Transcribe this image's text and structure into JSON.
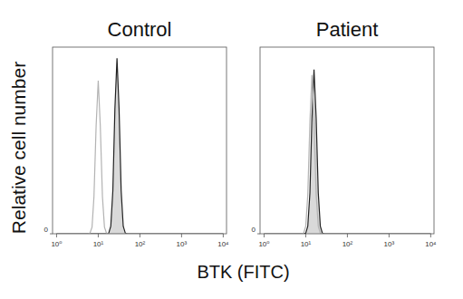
{
  "chart_data": [
    {
      "type": "line",
      "title": "Control",
      "log": "x",
      "x": [
        1,
        5.0,
        5.6,
        6.3,
        7.1,
        7.9,
        8.9,
        10,
        11.2,
        12.6,
        14.1,
        15.8,
        17.8,
        20,
        22.4,
        25.1,
        28.2,
        31.6,
        35.5,
        39.8,
        44.7,
        50.1,
        56.2,
        63.1,
        10000
      ],
      "series": [
        {
          "type": "line",
          "color": "#b3b3b3",
          "values": [
            0,
            0,
            0,
            0.3,
            3.6,
            20,
            58,
            82,
            58,
            20,
            3.6,
            0.3,
            0,
            0,
            0,
            0,
            0,
            0,
            0,
            0,
            0,
            0,
            0,
            0,
            0
          ]
        },
        {
          "type": "area",
          "color": "#d9d9d9",
          "values": [
            0,
            0,
            0,
            0,
            0,
            0,
            0,
            0,
            0,
            0,
            0,
            0,
            0.3,
            4,
            23,
            67,
            94,
            67,
            23,
            4,
            0.3,
            0,
            0,
            0,
            0
          ]
        }
      ],
      "xlim": [
        0.8,
        12000
      ],
      "xticks": [
        {
          "value": 1,
          "label": "10⁰"
        },
        {
          "value": 10,
          "label": "10¹"
        },
        {
          "value": 100,
          "label": "10²"
        },
        {
          "value": 1000,
          "label": "10³"
        },
        {
          "value": 10000,
          "label": "10⁴"
        }
      ],
      "ylim": [
        0,
        100
      ],
      "yticks": [
        0
      ]
    },
    {
      "type": "line",
      "title": "Patient",
      "log": "x",
      "x": [
        1,
        5.0,
        5.6,
        6.3,
        7.1,
        7.9,
        8.9,
        10,
        11.2,
        12.6,
        14.1,
        15.8,
        17.8,
        20,
        22.4,
        25.1,
        28.2,
        31.6,
        35.5,
        39.8,
        44.7,
        50.1,
        56.2,
        63.1,
        10000
      ],
      "series": [
        {
          "type": "line",
          "color": "#b3b3b3",
          "values": [
            0,
            0,
            0,
            0,
            0,
            0,
            0.3,
            4,
            21,
            60,
            85,
            60,
            21,
            4,
            0.3,
            0,
            0,
            0,
            0,
            0,
            0,
            0,
            0,
            0,
            0
          ]
        },
        {
          "type": "area",
          "color": "#d9d9d9",
          "values": [
            0,
            0,
            0,
            0,
            0,
            0,
            0,
            0.3,
            4,
            22,
            62,
            88,
            62,
            22,
            4,
            0.3,
            0,
            0,
            0,
            0,
            0,
            0,
            0,
            0,
            0
          ]
        }
      ],
      "xlim": [
        0.8,
        12000
      ],
      "xticks": [
        {
          "value": 1,
          "label": "10⁰"
        },
        {
          "value": 10,
          "label": "10¹"
        },
        {
          "value": 100,
          "label": "10²"
        },
        {
          "value": 1000,
          "label": "10³"
        },
        {
          "value": 10000,
          "label": "10⁴"
        }
      ],
      "ylim": [
        0,
        100
      ],
      "yticks": [
        0
      ]
    }
  ],
  "x_label": "BTK (FITC)",
  "y_label": "Relative cell number"
}
